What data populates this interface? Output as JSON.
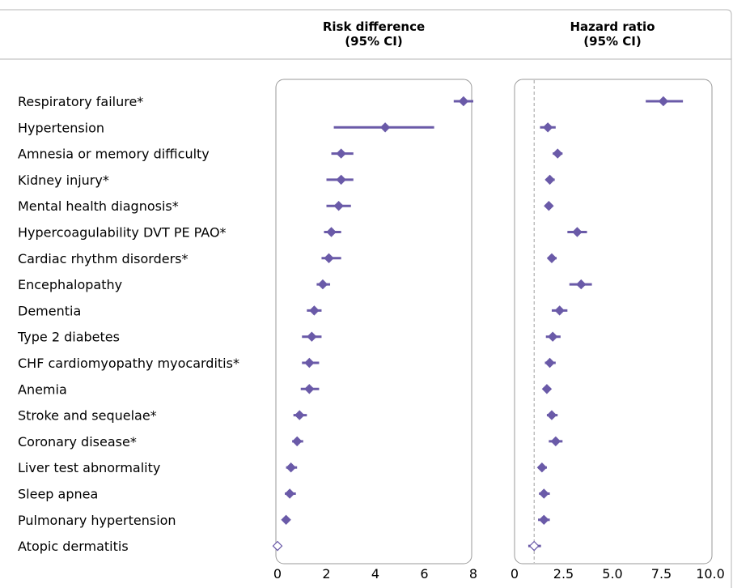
{
  "chart_data": [
    {
      "type": "forest",
      "title": "Risk difference",
      "subtitle": "(95% CI)",
      "categories": [
        "Respiratory failure*",
        "Hypertension",
        "Amnesia or memory difficulty",
        "Kidney injury*",
        "Mental health diagnosis*",
        "Hypercoagulability DVT PE PAO*",
        "Cardiac rhythm disorders*",
        "Encephalopathy",
        "Dementia",
        "Type 2 diabetes",
        "CHF cardiomyopathy myocarditis*",
        "Anemia",
        "Stroke and sequelae*",
        "Coronary disease*",
        "Liver test abnormality",
        "Sleep apnea",
        "Pulmonary hypertension",
        "Atopic dermatitis"
      ],
      "values": [
        7.6,
        4.4,
        2.6,
        2.6,
        2.5,
        2.2,
        2.1,
        1.85,
        1.5,
        1.4,
        1.3,
        1.3,
        0.9,
        0.8,
        0.55,
        0.5,
        0.35,
        0.0
      ],
      "ci_low": [
        7.2,
        2.3,
        2.2,
        2.0,
        2.0,
        1.9,
        1.8,
        1.6,
        1.2,
        1.0,
        1.0,
        0.95,
        0.65,
        0.6,
        0.35,
        0.3,
        0.2,
        0.0
      ],
      "ci_high": [
        8.0,
        6.4,
        3.1,
        3.1,
        3.0,
        2.6,
        2.6,
        2.15,
        1.8,
        1.8,
        1.7,
        1.7,
        1.2,
        1.05,
        0.8,
        0.75,
        0.5,
        0.0
      ],
      "significant": [
        true,
        true,
        true,
        true,
        true,
        true,
        true,
        true,
        true,
        true,
        true,
        true,
        true,
        true,
        true,
        true,
        true,
        false
      ],
      "xlim": [
        0,
        8
      ],
      "xticks": [
        "0",
        "2",
        "4",
        "6",
        "8"
      ]
    },
    {
      "type": "forest",
      "title": "Hazard ratio",
      "subtitle": "(95% CI)",
      "categories": [
        "Respiratory failure*",
        "Hypertension",
        "Amnesia or memory difficulty",
        "Kidney injury*",
        "Mental health diagnosis*",
        "Hypercoagulability DVT PE PAO*",
        "Cardiac rhythm disorders*",
        "Encephalopathy",
        "Dementia",
        "Type 2 diabetes",
        "CHF cardiomyopathy myocarditis*",
        "Anemia",
        "Stroke and sequelae*",
        "Coronary disease*",
        "Liver test abnormality",
        "Sleep apnea",
        "Pulmonary hypertension",
        "Atopic dermatitis"
      ],
      "values": [
        7.6,
        1.7,
        2.2,
        1.8,
        1.75,
        3.2,
        1.9,
        3.4,
        2.3,
        1.95,
        1.8,
        1.65,
        1.9,
        2.1,
        1.4,
        1.5,
        1.5,
        1.0
      ],
      "ci_low": [
        6.7,
        1.3,
        1.95,
        1.6,
        1.55,
        2.7,
        1.7,
        2.8,
        1.9,
        1.6,
        1.55,
        1.45,
        1.65,
        1.75,
        1.2,
        1.25,
        1.2,
        0.7
      ],
      "ci_high": [
        8.6,
        2.1,
        2.45,
        2.05,
        1.95,
        3.7,
        2.15,
        3.95,
        2.7,
        2.35,
        2.1,
        1.85,
        2.2,
        2.45,
        1.65,
        1.8,
        1.8,
        1.35
      ],
      "significant": [
        true,
        true,
        true,
        true,
        true,
        true,
        true,
        true,
        true,
        true,
        true,
        true,
        true,
        true,
        true,
        true,
        true,
        false
      ],
      "reference_line": 1.0,
      "xlim": [
        0,
        10
      ],
      "xticks": [
        "0",
        "2.5",
        "5.0",
        "7.5",
        "10.0"
      ]
    }
  ],
  "colors": {
    "marker": "#6a5aa8",
    "axis": "#999999",
    "frame": "#9a9a9a"
  }
}
